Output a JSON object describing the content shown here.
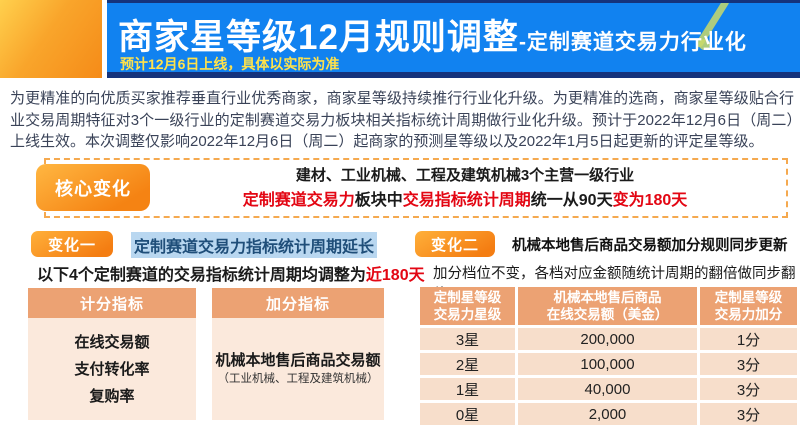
{
  "header": {
    "title_main": "商家星等级12月规则调整",
    "title_sub": "-定制赛道交易力行业化",
    "subtitle": "预计12月6日上线，具体以实际为准"
  },
  "intro": "为更精准的向优质买家推荐垂直行业优秀商家，商家星等级持续推行行业化升级。为更精准的选商，商家星等级贴合行业交易周期特征对3个一级行业的定制赛道交易力板块相关指标统计周期做行业化升级。预计于2022年12月6日（周二）上线生效。本次调整仅影响2022年12月6日（周二）起商家的预测星等级以及2022年1月5日起更新的评定星等级。",
  "core": {
    "badge": "核心变化",
    "line1": "建材、工业机械、工程及建筑机械3个主营一级行业",
    "line2": {
      "seg1": "定制赛道交易力",
      "seg2": "板块中",
      "seg3": "交易指标统计周期",
      "seg4": "统一从90天",
      "seg5": "变为180天"
    }
  },
  "change1": {
    "badge": "变化一",
    "title": "定制赛道交易力指标统计周期延长",
    "desc_plain": "以下4个定制赛道的交易指标统计周期均调整为",
    "desc_red": "近180天",
    "scoring_box": {
      "header": "计分指标",
      "items": [
        "在线交易额",
        "支付转化率",
        "复购率"
      ]
    },
    "bonus_box": {
      "header": "加分指标",
      "main": "机械本地售后商品交易额",
      "note": "（工业机械、工程及建筑机械）"
    }
  },
  "change2": {
    "badge": "变化二",
    "title": "机械本地售后商品交易额加分规则同步更新",
    "desc": "加分档位不变，各档对应金额随统计周期的翻倍做同步翻倍",
    "table": {
      "headers": [
        [
          "定制星等级",
          "交易力星级"
        ],
        [
          "机械本地售后商品",
          "在线交易额（美金）"
        ],
        [
          "定制星等级",
          "交易力加分"
        ]
      ],
      "rows": [
        [
          "3星",
          "200,000",
          "1分"
        ],
        [
          "2星",
          "100,000",
          "3分"
        ],
        [
          "1星",
          "40,000",
          "3分"
        ],
        [
          "0星",
          "2,000",
          "3分"
        ]
      ]
    }
  },
  "colors": {
    "banner_blue": "#1182f0",
    "banner_navy": "#15337c",
    "brand_orange": "#f58313",
    "subtitle_yellow": "#ffe24b",
    "alert_red": "#e30613",
    "highlight_blue_bg": "#b9d7f0",
    "highlight_blue_text": "#1f4e79",
    "table_header_salmon": "#eca273",
    "table_row_peach": "#f7decb",
    "box_body_peach": "#fbe9dc"
  }
}
